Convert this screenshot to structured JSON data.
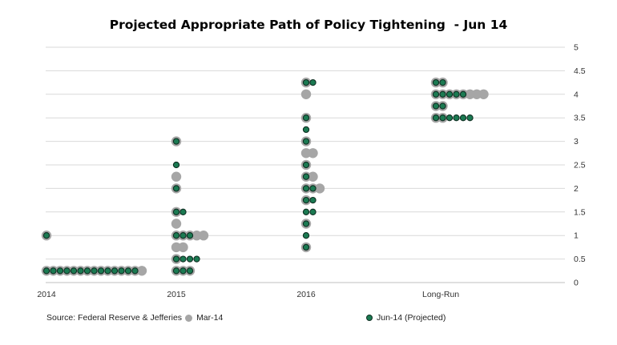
{
  "chart_data": {
    "type": "scatter",
    "title": "Projected Appropriate Path of Policy Tightening  - Jun 14",
    "categories": [
      "2014",
      "2015",
      "2016",
      "Long-Run"
    ],
    "ylim": [
      0,
      5
    ],
    "yticks": [
      "0",
      "0.5",
      "1",
      "1.5",
      "2",
      "2.5",
      "3",
      "3.5",
      "4",
      "4.5",
      "5"
    ],
    "grid": true,
    "legend_position": "bottom",
    "colors": {
      "mar": "#a6a6a6",
      "jun": "#1b7a52",
      "jun_edge": "#0f2f22",
      "grid": "#d9d9d9"
    },
    "series": [
      {
        "name": "Mar-14",
        "color": "#a6a6a6",
        "dots": [
          {
            "x": "2014",
            "y": 0.25,
            "count": 15
          },
          {
            "x": "2014",
            "y": 1.0,
            "count": 1
          },
          {
            "x": "2015",
            "y": 0.25,
            "count": 3
          },
          {
            "x": "2015",
            "y": 0.5,
            "count": 1
          },
          {
            "x": "2015",
            "y": 0.75,
            "count": 2
          },
          {
            "x": "2015",
            "y": 1.0,
            "count": 5
          },
          {
            "x": "2015",
            "y": 1.25,
            "count": 1
          },
          {
            "x": "2015",
            "y": 1.5,
            "count": 1
          },
          {
            "x": "2015",
            "y": 2.0,
            "count": 1
          },
          {
            "x": "2015",
            "y": 2.25,
            "count": 1
          },
          {
            "x": "2015",
            "y": 3.0,
            "count": 1
          },
          {
            "x": "2016",
            "y": 0.75,
            "count": 1
          },
          {
            "x": "2016",
            "y": 1.25,
            "count": 1
          },
          {
            "x": "2016",
            "y": 1.75,
            "count": 1
          },
          {
            "x": "2016",
            "y": 2.0,
            "count": 3
          },
          {
            "x": "2016",
            "y": 2.25,
            "count": 2
          },
          {
            "x": "2016",
            "y": 2.5,
            "count": 1
          },
          {
            "x": "2016",
            "y": 2.75,
            "count": 2
          },
          {
            "x": "2016",
            "y": 3.0,
            "count": 1
          },
          {
            "x": "2016",
            "y": 3.5,
            "count": 1
          },
          {
            "x": "2016",
            "y": 4.0,
            "count": 1
          },
          {
            "x": "2016",
            "y": 4.25,
            "count": 1
          },
          {
            "x": "Long-Run",
            "y": 3.5,
            "count": 2
          },
          {
            "x": "Long-Run",
            "y": 3.75,
            "count": 2
          },
          {
            "x": "Long-Run",
            "y": 4.0,
            "count": 8
          },
          {
            "x": "Long-Run",
            "y": 4.25,
            "count": 2
          }
        ]
      },
      {
        "name": "Jun-14 (Projected)",
        "color": "#1b7a52",
        "dots": [
          {
            "x": "2014",
            "y": 0.25,
            "count": 14
          },
          {
            "x": "2014",
            "y": 1.0,
            "count": 1
          },
          {
            "x": "2015",
            "y": 0.25,
            "count": 3
          },
          {
            "x": "2015",
            "y": 0.5,
            "count": 4
          },
          {
            "x": "2015",
            "y": 1.0,
            "count": 3
          },
          {
            "x": "2015",
            "y": 1.5,
            "count": 2
          },
          {
            "x": "2015",
            "y": 2.0,
            "count": 1
          },
          {
            "x": "2015",
            "y": 2.5,
            "count": 1
          },
          {
            "x": "2015",
            "y": 3.0,
            "count": 1
          },
          {
            "x": "2016",
            "y": 0.75,
            "count": 1
          },
          {
            "x": "2016",
            "y": 1.0,
            "count": 1
          },
          {
            "x": "2016",
            "y": 1.25,
            "count": 1
          },
          {
            "x": "2016",
            "y": 1.5,
            "count": 2
          },
          {
            "x": "2016",
            "y": 1.75,
            "count": 2
          },
          {
            "x": "2016",
            "y": 2.0,
            "count": 2
          },
          {
            "x": "2016",
            "y": 2.25,
            "count": 1
          },
          {
            "x": "2016",
            "y": 2.5,
            "count": 1
          },
          {
            "x": "2016",
            "y": 3.0,
            "count": 1
          },
          {
            "x": "2016",
            "y": 3.25,
            "count": 1
          },
          {
            "x": "2016",
            "y": 3.5,
            "count": 1
          },
          {
            "x": "2016",
            "y": 4.25,
            "count": 2
          },
          {
            "x": "Long-Run",
            "y": 3.5,
            "count": 6
          },
          {
            "x": "Long-Run",
            "y": 3.75,
            "count": 2
          },
          {
            "x": "Long-Run",
            "y": 4.0,
            "count": 5
          },
          {
            "x": "Long-Run",
            "y": 4.25,
            "count": 2
          }
        ]
      }
    ]
  },
  "footer": {
    "source": "Source: Federal Reserve & Jefferies",
    "legend_mar": "Mar-14",
    "legend_jun": "Jun-14 (Projected)"
  }
}
